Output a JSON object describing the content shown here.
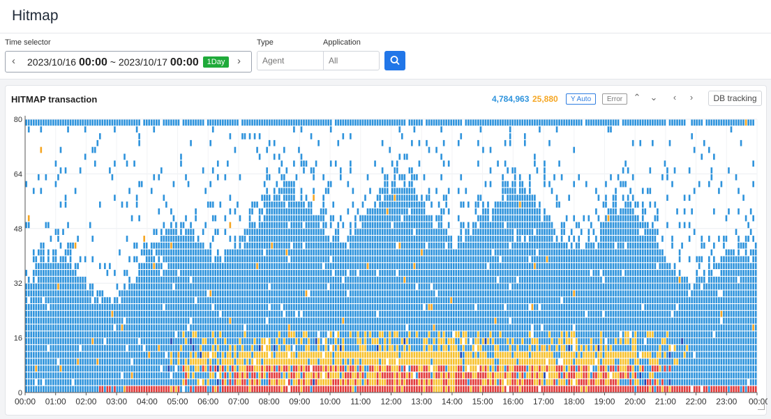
{
  "page": {
    "title": "Hitmap"
  },
  "filters": {
    "time_selector": {
      "label": "Time selector",
      "start_date": "2023/10/16",
      "start_time": "00:00",
      "separator": "~",
      "end_date": "2023/10/17",
      "end_time": "00:00",
      "range_badge": "1Day"
    },
    "type": {
      "label": "Type",
      "placeholder": "Agent"
    },
    "application": {
      "label": "Application",
      "value": "All"
    }
  },
  "chart_card": {
    "title": "HITMAP transaction",
    "normal_count": "4,784,963",
    "error_count": "25,880",
    "y_auto_label": "Y Auto",
    "error_label": "Error",
    "db_tracking_label": "DB tracking"
  },
  "chart_data": {
    "type": "heatmap",
    "title": "HITMAP transaction",
    "y_ticks": [
      0,
      16,
      32,
      48,
      64,
      80
    ],
    "ylim": [
      0,
      80
    ],
    "x_ticks": [
      "00:00",
      "01:00",
      "02:00",
      "03:00",
      "04:00",
      "05:00",
      "06:00",
      "07:00",
      "08:00",
      "09:00",
      "10:00",
      "11:00",
      "12:00",
      "13:00",
      "14:00",
      "15:00",
      "16:00",
      "17:00",
      "18:00",
      "19:00",
      "20:00",
      "21:00",
      "22:00",
      "23:00",
      "00:00"
    ],
    "xlim": [
      "2023/10/16 00:00",
      "2023/10/17 00:00"
    ],
    "grid": true,
    "colors": {
      "normal": "#2e93dc",
      "normal_dense": "#1a3fb0",
      "warning": "#f7c12e",
      "error": "#e23b3b",
      "error_marker": "#f5a623",
      "axis": "#555555"
    }
  }
}
